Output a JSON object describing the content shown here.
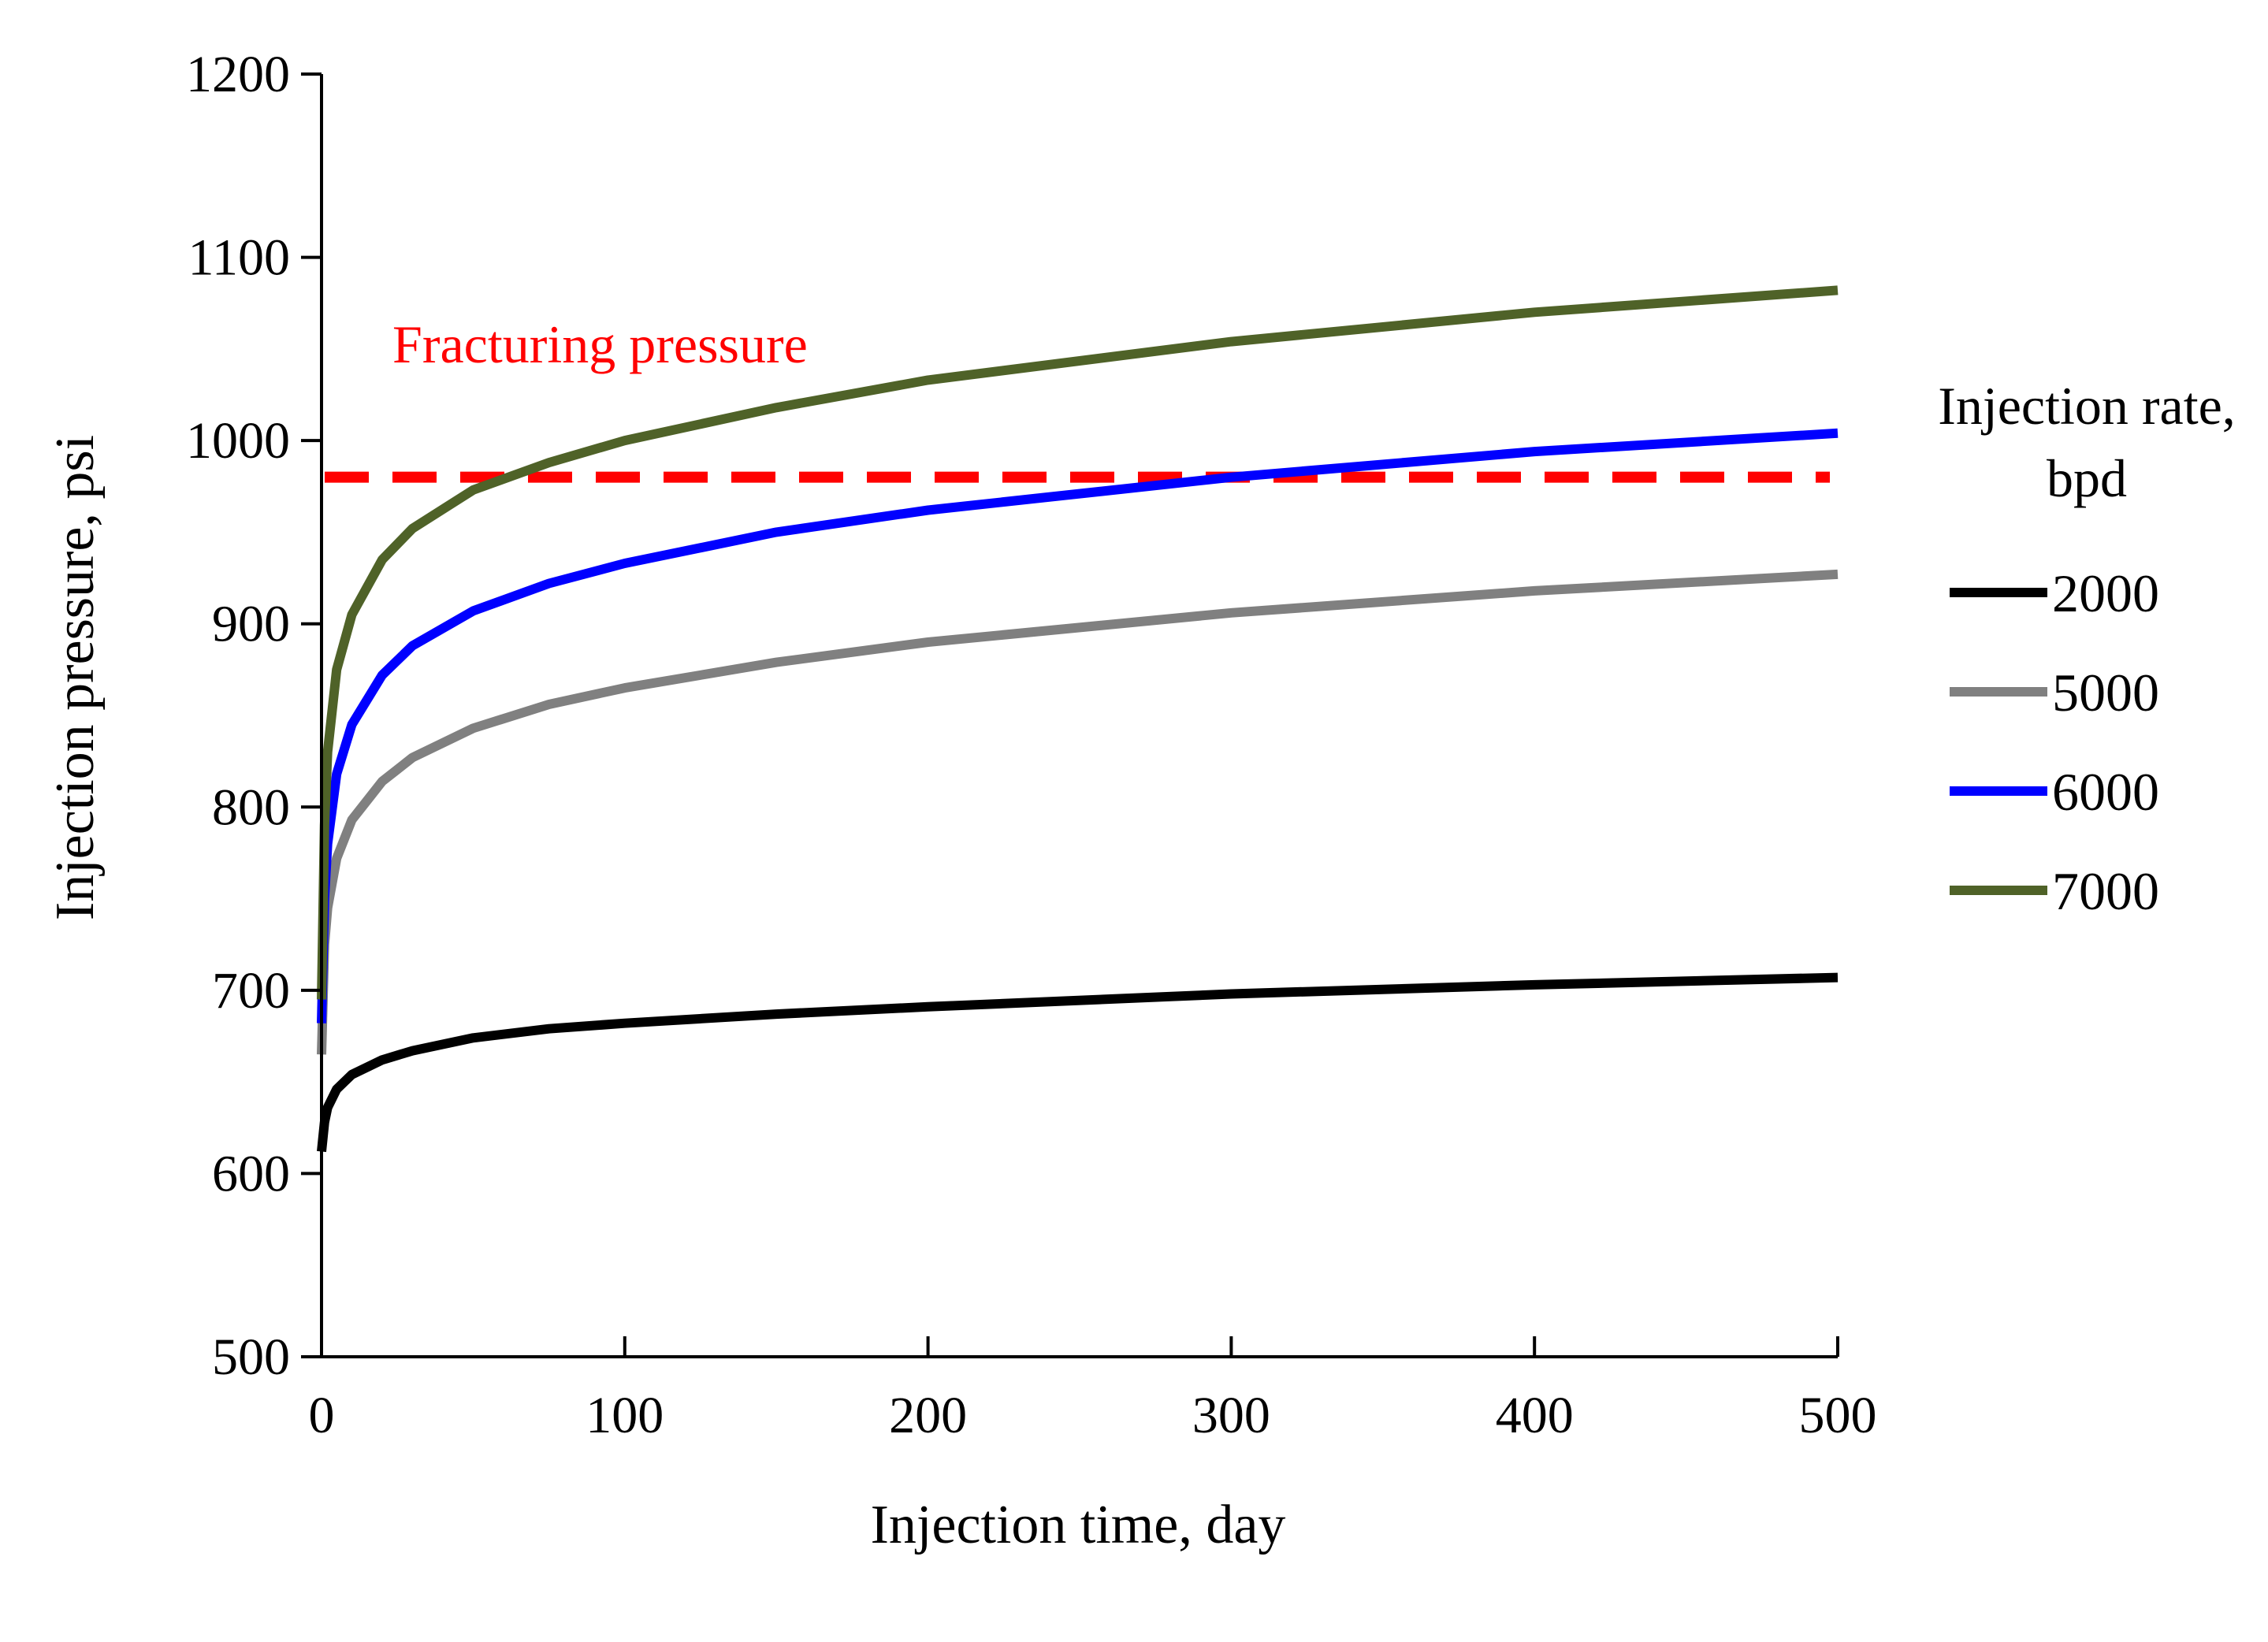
{
  "chart_data": {
    "type": "line",
    "xlabel": "Injection time, day",
    "ylabel": "Injection pressure, psi",
    "xlim": [
      0,
      500
    ],
    "ylim": [
      500,
      1200
    ],
    "xticks": [
      0,
      100,
      200,
      300,
      400,
      500
    ],
    "yticks": [
      500,
      600,
      700,
      800,
      900,
      1000,
      1100,
      1200
    ],
    "x": [
      0,
      1,
      2,
      5,
      10,
      20,
      30,
      50,
      75,
      100,
      150,
      200,
      300,
      400,
      500
    ],
    "series": [
      {
        "name": "2000",
        "color": "#000000",
        "values": [
          612,
          628,
          636,
          646,
          654,
          662,
          667,
          674,
          679,
          682,
          687,
          691,
          698,
          703,
          707
        ]
      },
      {
        "name": "5000",
        "color": "#808080",
        "values": [
          665,
          725,
          745,
          772,
          793,
          814,
          827,
          843,
          856,
          865,
          879,
          890,
          906,
          918,
          927
        ]
      },
      {
        "name": "6000",
        "color": "#0000ff",
        "values": [
          682,
          750,
          780,
          818,
          845,
          872,
          888,
          907,
          922,
          933,
          950,
          962,
          980,
          994,
          1004
        ]
      },
      {
        "name": "7000",
        "color": "#4f6228",
        "values": [
          695,
          790,
          830,
          875,
          905,
          935,
          952,
          973,
          988,
          1000,
          1018,
          1033,
          1054,
          1070,
          1082
        ]
      }
    ],
    "reference_line": {
      "label": "Fracturing pressure",
      "y": 980,
      "color": "#ff0000",
      "style": "dashed"
    },
    "legend": {
      "title_line1": "Injection rate,",
      "title_line2": "bpd",
      "position": "right"
    }
  }
}
